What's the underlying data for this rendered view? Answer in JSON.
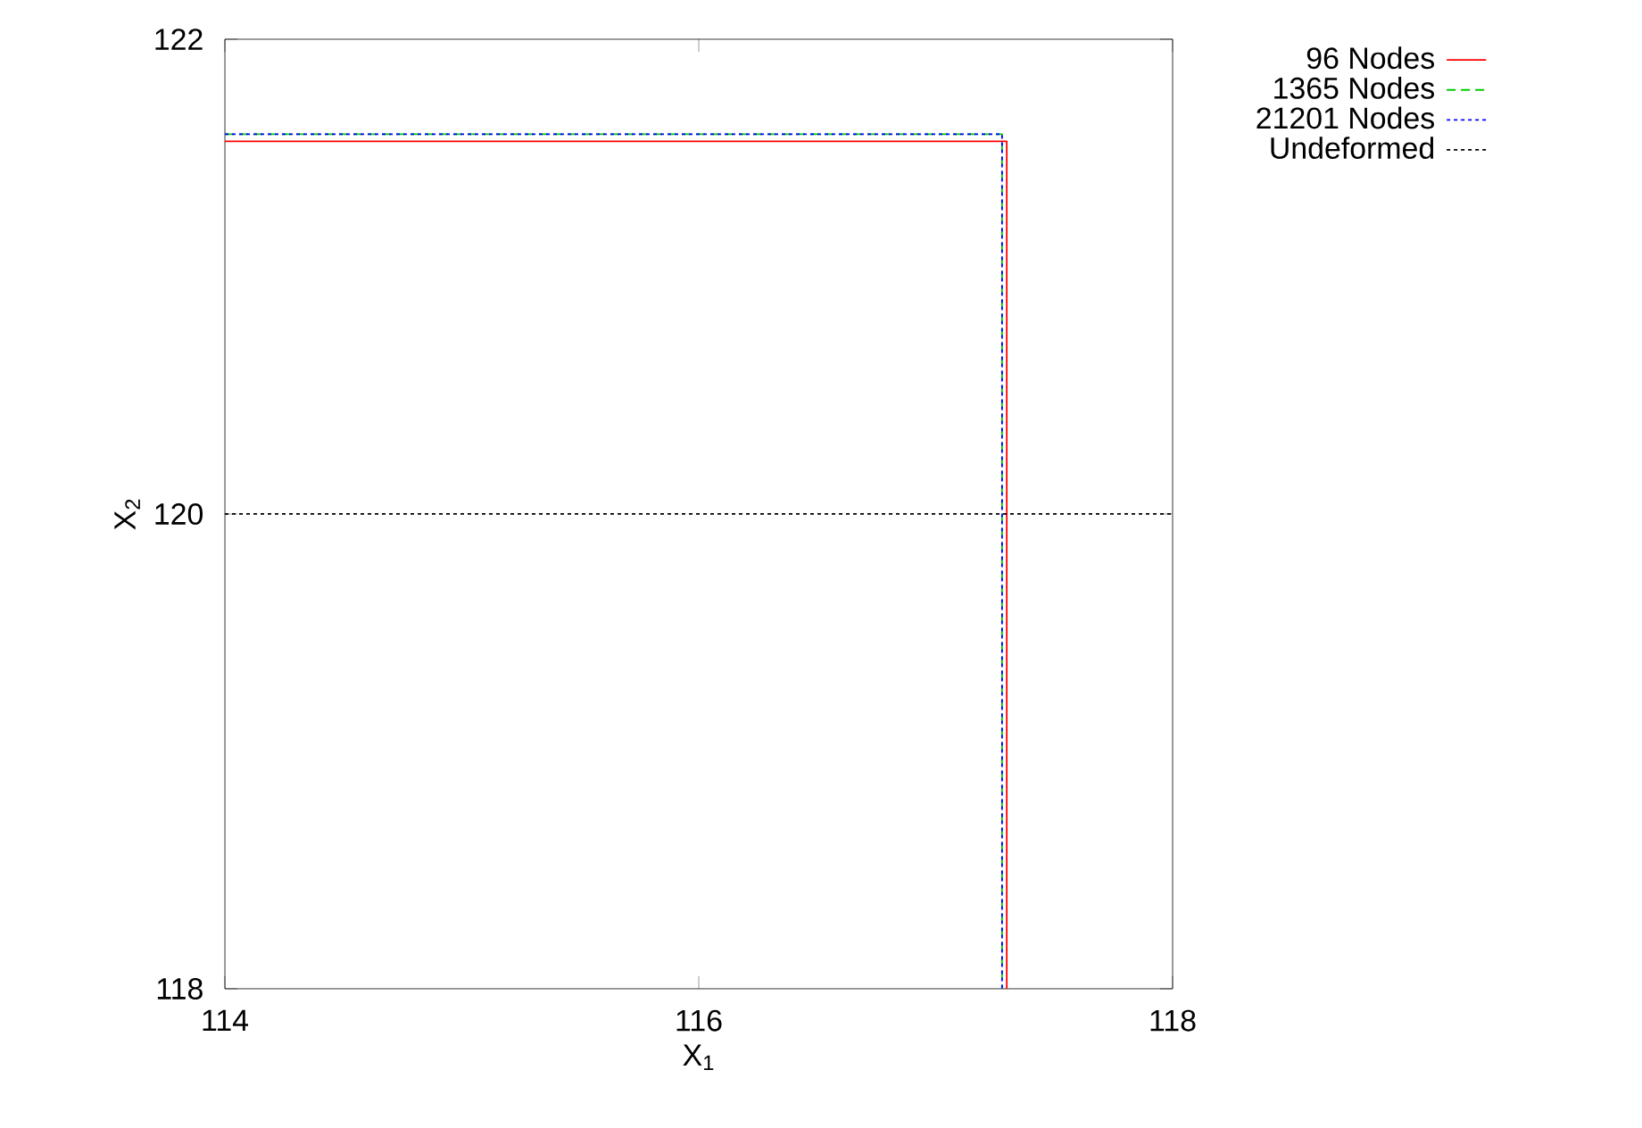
{
  "chart_data": {
    "type": "line",
    "xlabel": "X$_{1}$",
    "ylabel": "X$_{2}$",
    "xlim": [
      114,
      118
    ],
    "ylim": [
      118,
      122
    ],
    "xticks": [
      114,
      116,
      118
    ],
    "yticks": [
      118,
      120,
      122
    ],
    "grid": false,
    "legend": "top right",
    "marker": "none",
    "series": [
      {
        "name": "96 Nodes",
        "color": "#ff0000",
        "line_style": "solid",
        "x": [
          114,
          117.3,
          117.3
        ],
        "values": [
          121.57,
          121.57,
          118
        ]
      },
      {
        "name": "1365 Nodes",
        "color": "#00cc00",
        "line_style": "dashed",
        "x": [
          114,
          117.28,
          117.28
        ],
        "values": [
          121.6,
          121.6,
          118
        ]
      },
      {
        "name": "21201 Nodes",
        "color": "#0000ff",
        "line_style": "dotted",
        "x": [
          114,
          117.28,
          117.28
        ],
        "values": [
          121.6,
          121.6,
          118
        ]
      },
      {
        "name": "Undeformed",
        "color": "#000000",
        "line_style": "dotted",
        "x": [
          114,
          118
        ],
        "values": [
          120,
          120
        ]
      }
    ]
  }
}
